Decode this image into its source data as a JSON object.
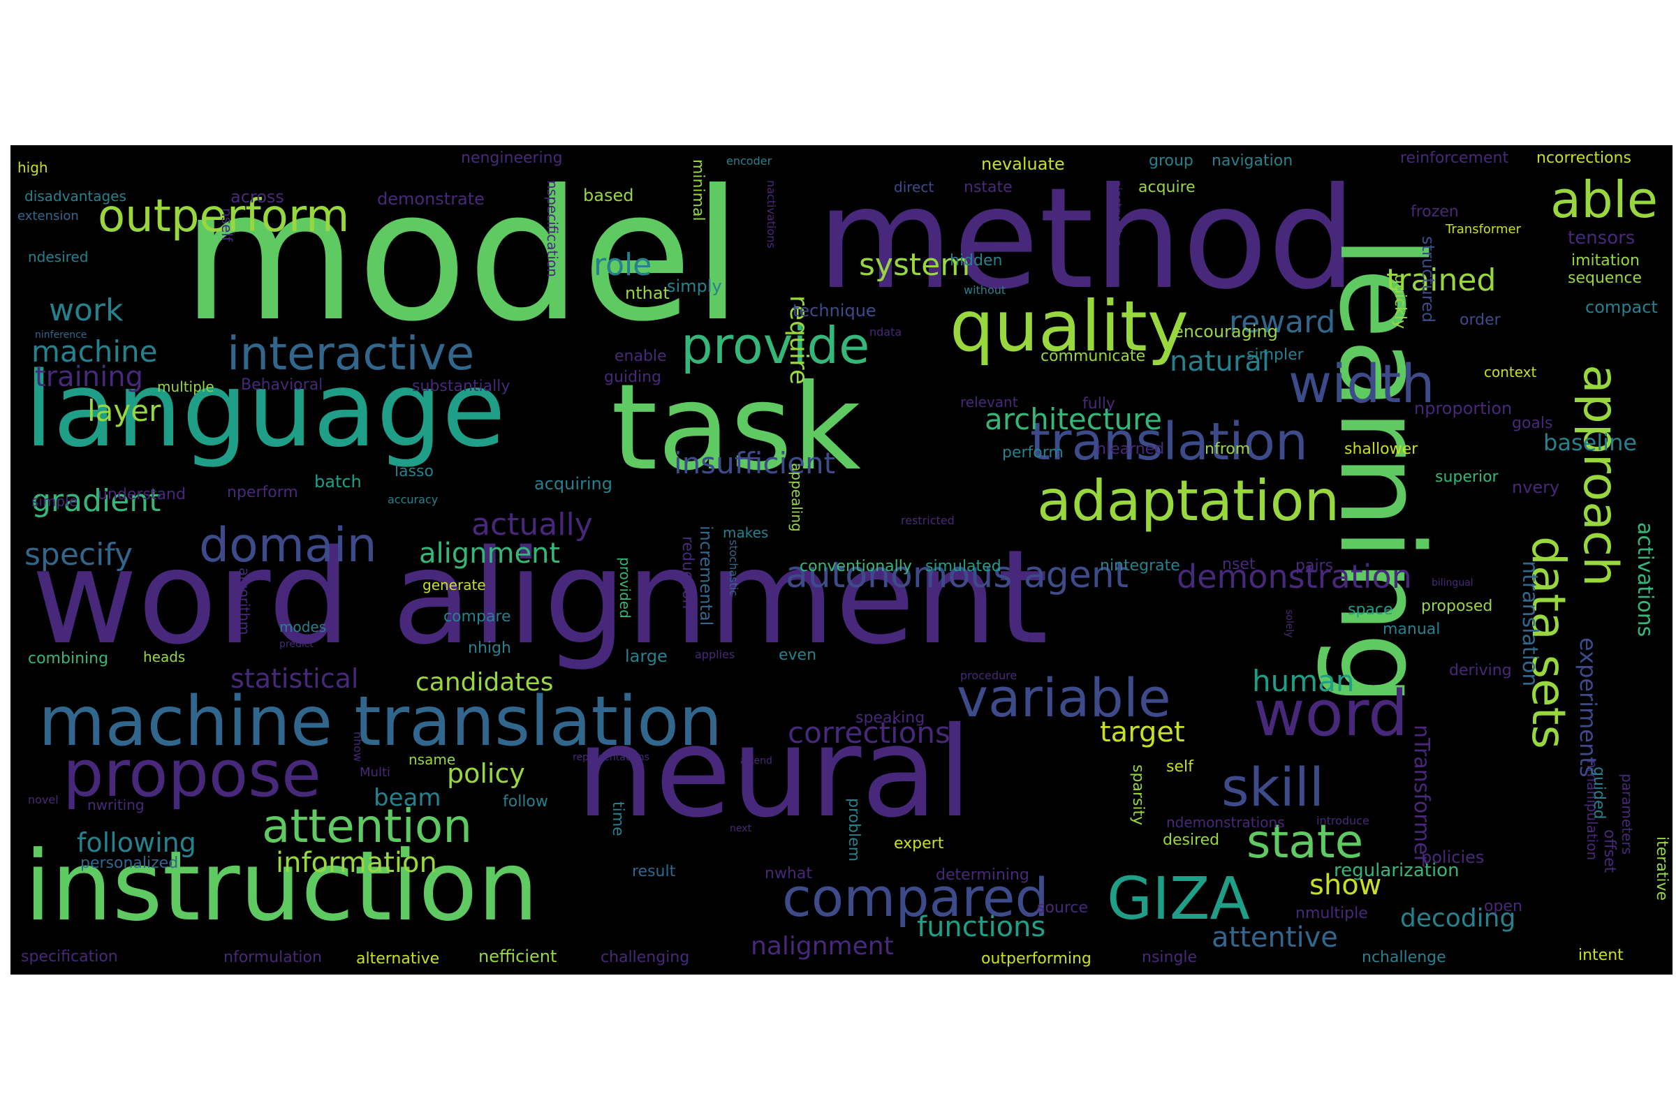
{
  "image": {
    "background": "#000000",
    "palette": {
      "dpurple": "#46145f",
      "purple": "#48287a",
      "indigo": "#3e4b8a",
      "blue": "#31678d",
      "teal": "#26818e",
      "cyan": "#1f9f88",
      "green": "#35b779",
      "lgreen": "#5fca61",
      "lime": "#98d83e",
      "yellow": "#c8e020"
    },
    "words": [
      {
        "text": "model",
        "color": "lgreen"
      },
      {
        "text": "method",
        "color": "purple"
      },
      {
        "text": "learning",
        "color": "lgreen"
      },
      {
        "text": "task",
        "color": "lgreen"
      },
      {
        "text": "language",
        "color": "cyan"
      },
      {
        "text": "word alignment",
        "color": "purple"
      },
      {
        "text": "neural",
        "color": "purple"
      },
      {
        "text": "instruction",
        "color": "lgreen"
      },
      {
        "text": "outperform",
        "color": "lime"
      },
      {
        "text": "machine translation",
        "color": "blue"
      },
      {
        "text": "interactive",
        "color": "blue"
      },
      {
        "text": "quality",
        "color": "lime"
      },
      {
        "text": "provide",
        "color": "green"
      },
      {
        "text": "able",
        "color": "lime"
      },
      {
        "text": "adaptation",
        "color": "lime"
      },
      {
        "text": "translation",
        "color": "indigo"
      },
      {
        "text": "propose",
        "color": "purple"
      },
      {
        "text": "attention",
        "color": "lgreen"
      },
      {
        "text": "compared",
        "color": "indigo"
      },
      {
        "text": "GIZA",
        "color": "cyan"
      },
      {
        "text": "word",
        "color": "purple"
      },
      {
        "text": "variable",
        "color": "indigo"
      },
      {
        "text": "domain",
        "color": "indigo"
      },
      {
        "text": "width",
        "color": "indigo"
      },
      {
        "text": "approach",
        "color": "lime"
      },
      {
        "text": "data sets",
        "color": "lime"
      },
      {
        "text": "skill",
        "color": "indigo"
      },
      {
        "text": "state",
        "color": "lgreen"
      },
      {
        "text": "autonomous agent",
        "color": "indigo"
      },
      {
        "text": "demonstration",
        "color": "purple"
      },
      {
        "text": "gradient",
        "color": "green"
      },
      {
        "text": "specify",
        "color": "blue"
      },
      {
        "text": "alignment",
        "color": "green"
      },
      {
        "text": "actually",
        "color": "purple"
      },
      {
        "text": "insufficient",
        "color": "indigo"
      },
      {
        "text": "architecture",
        "color": "green"
      },
      {
        "text": "natural",
        "color": "teal"
      },
      {
        "text": "reward",
        "color": "blue"
      },
      {
        "text": "system",
        "color": "lime"
      },
      {
        "text": "trained",
        "color": "lime"
      },
      {
        "text": "role",
        "color": "teal"
      },
      {
        "text": "work",
        "color": "teal"
      },
      {
        "text": "machine",
        "color": "teal"
      },
      {
        "text": "training",
        "color": "purple"
      },
      {
        "text": "layer",
        "color": "lime"
      },
      {
        "text": "require",
        "color": "lime"
      },
      {
        "text": "statistical",
        "color": "purple"
      },
      {
        "text": "candidates",
        "color": "lime"
      },
      {
        "text": "human",
        "color": "cyan"
      },
      {
        "text": "target",
        "color": "yellow"
      },
      {
        "text": "corrections",
        "color": "purple"
      },
      {
        "text": "policy",
        "color": "lime"
      },
      {
        "text": "following",
        "color": "teal"
      },
      {
        "text": "information",
        "color": "lime"
      },
      {
        "text": "functions",
        "color": "cyan"
      },
      {
        "text": "attentive",
        "color": "blue"
      },
      {
        "text": "decoding",
        "color": "teal"
      },
      {
        "text": "show",
        "color": "yellow"
      },
      {
        "text": "nalignment",
        "color": "purple"
      },
      {
        "text": "beam",
        "color": "teal"
      },
      {
        "text": "activations",
        "color": "green"
      },
      {
        "text": "experiments",
        "color": "indigo"
      },
      {
        "text": "ntranslation",
        "color": "blue"
      },
      {
        "text": "nTransformer",
        "color": "purple"
      },
      {
        "text": "baseline",
        "color": "teal"
      },
      {
        "text": "regularization",
        "color": "green"
      },
      {
        "text": "policies",
        "color": "purple"
      },
      {
        "text": "nevaluate",
        "color": "yellow"
      },
      {
        "text": "group",
        "color": "teal"
      },
      {
        "text": "navigation",
        "color": "teal"
      },
      {
        "text": "nengineering",
        "color": "purple"
      },
      {
        "text": "reinforcement",
        "color": "purple"
      },
      {
        "text": "ncorrections",
        "color": "yellow"
      },
      {
        "text": "high",
        "color": "yellow"
      },
      {
        "text": "disadvantages",
        "color": "teal"
      },
      {
        "text": "extension",
        "color": "blue"
      },
      {
        "text": "ndesired",
        "color": "teal"
      },
      {
        "text": "ninference",
        "color": "blue"
      },
      {
        "text": "across",
        "color": "purple"
      },
      {
        "text": "demonstrate",
        "color": "purple"
      },
      {
        "text": "based",
        "color": "lime"
      },
      {
        "text": "encoder",
        "color": "teal"
      },
      {
        "text": "direct",
        "color": "indigo"
      },
      {
        "text": "nstate",
        "color": "purple"
      },
      {
        "text": "acquire",
        "color": "lime"
      },
      {
        "text": "frozen",
        "color": "purple"
      },
      {
        "text": "Transformer",
        "color": "yellow"
      },
      {
        "text": "tensors",
        "color": "purple"
      },
      {
        "text": "imitation",
        "color": "lime"
      },
      {
        "text": "sequence",
        "color": "lime"
      },
      {
        "text": "compact",
        "color": "teal"
      },
      {
        "text": "order",
        "color": "indigo"
      },
      {
        "text": "hidden",
        "color": "teal"
      },
      {
        "text": "without",
        "color": "teal"
      },
      {
        "text": "nthat",
        "color": "lime"
      },
      {
        "text": "simply",
        "color": "teal"
      },
      {
        "text": "technique",
        "color": "indigo"
      },
      {
        "text": "ndata",
        "color": "purple"
      },
      {
        "text": "encouraging",
        "color": "lime"
      },
      {
        "text": "simpler",
        "color": "teal"
      },
      {
        "text": "context",
        "color": "yellow"
      },
      {
        "text": "communicate",
        "color": "lime"
      },
      {
        "text": "enable",
        "color": "purple"
      },
      {
        "text": "guiding",
        "color": "purple"
      },
      {
        "text": "multiple",
        "color": "lime"
      },
      {
        "text": "Behavioral",
        "color": "purple"
      },
      {
        "text": "substantially",
        "color": "purple"
      },
      {
        "text": "relevant",
        "color": "purple"
      },
      {
        "text": "fully",
        "color": "purple"
      },
      {
        "text": "nproportion",
        "color": "purple"
      },
      {
        "text": "goals",
        "color": "purple"
      },
      {
        "text": "perform",
        "color": "teal"
      },
      {
        "text": "nlearned",
        "color": "purple"
      },
      {
        "text": "nfrom",
        "color": "lime"
      },
      {
        "text": "shallower",
        "color": "yellow"
      },
      {
        "text": "superior",
        "color": "green"
      },
      {
        "text": "nvery",
        "color": "purple"
      },
      {
        "text": "batch",
        "color": "cyan"
      },
      {
        "text": "lasso",
        "color": "teal"
      },
      {
        "text": "acquiring",
        "color": "teal"
      },
      {
        "text": "simple",
        "color": "purple"
      },
      {
        "text": "understand",
        "color": "purple"
      },
      {
        "text": "nperform",
        "color": "purple"
      },
      {
        "text": "accuracy",
        "color": "teal"
      },
      {
        "text": "restricted",
        "color": "purple"
      },
      {
        "text": "makes",
        "color": "teal"
      },
      {
        "text": "conventionally",
        "color": "green"
      },
      {
        "text": "simulated",
        "color": "cyan"
      },
      {
        "text": "nintegrate",
        "color": "teal"
      },
      {
        "text": "nset",
        "color": "purple"
      },
      {
        "text": "pairs",
        "color": "purple"
      },
      {
        "text": "bilingual",
        "color": "purple"
      },
      {
        "text": "generate",
        "color": "yellow"
      },
      {
        "text": "compare",
        "color": "teal"
      },
      {
        "text": "space",
        "color": "cyan"
      },
      {
        "text": "proposed",
        "color": "lime"
      },
      {
        "text": "manual",
        "color": "teal"
      },
      {
        "text": "modes",
        "color": "teal"
      },
      {
        "text": "predict",
        "color": "purple"
      },
      {
        "text": "nhigh",
        "color": "teal"
      },
      {
        "text": "combining",
        "color": "green"
      },
      {
        "text": "heads",
        "color": "lime"
      },
      {
        "text": "large",
        "color": "teal"
      },
      {
        "text": "applies",
        "color": "purple"
      },
      {
        "text": "even",
        "color": "teal"
      },
      {
        "text": "deriving",
        "color": "purple"
      },
      {
        "text": "procedure",
        "color": "purple"
      },
      {
        "text": "speaking",
        "color": "purple"
      },
      {
        "text": "nsame",
        "color": "lime"
      },
      {
        "text": "Multi",
        "color": "purple"
      },
      {
        "text": "representations",
        "color": "purple"
      },
      {
        "text": "attend",
        "color": "purple"
      },
      {
        "text": "self",
        "color": "yellow"
      },
      {
        "text": "novel",
        "color": "purple"
      },
      {
        "text": "nwriting",
        "color": "purple"
      },
      {
        "text": "follow",
        "color": "teal"
      },
      {
        "text": "next",
        "color": "purple"
      },
      {
        "text": "ndemonstrations",
        "color": "purple"
      },
      {
        "text": "introduce",
        "color": "purple"
      },
      {
        "text": "desired",
        "color": "lime"
      },
      {
        "text": "personalized",
        "color": "blue"
      },
      {
        "text": "expert",
        "color": "yellow"
      },
      {
        "text": "result",
        "color": "blue"
      },
      {
        "text": "nwhat",
        "color": "purple"
      },
      {
        "text": "determining",
        "color": "purple"
      },
      {
        "text": "source",
        "color": "purple"
      },
      {
        "text": "open",
        "color": "purple"
      },
      {
        "text": "nmultiple",
        "color": "purple"
      },
      {
        "text": "specification",
        "color": "purple"
      },
      {
        "text": "nformulation",
        "color": "purple"
      },
      {
        "text": "alternative",
        "color": "yellow"
      },
      {
        "text": "nefficient",
        "color": "lime"
      },
      {
        "text": "challenging",
        "color": "purple"
      },
      {
        "text": "outperforming",
        "color": "yellow"
      },
      {
        "text": "nsingle",
        "color": "purple"
      },
      {
        "text": "nchallenge",
        "color": "teal"
      },
      {
        "text": "intent",
        "color": "yellow"
      },
      {
        "text": "nself",
        "color": "purple"
      },
      {
        "text": "nspecification",
        "color": "purple"
      },
      {
        "text": "minimal",
        "color": "lime"
      },
      {
        "text": "nactivations",
        "color": "purple"
      },
      {
        "text": "ninstruction",
        "color": "purple"
      },
      {
        "text": "quickly",
        "color": "lime"
      },
      {
        "text": "structured",
        "color": "indigo"
      },
      {
        "text": "appealing",
        "color": "lime"
      },
      {
        "text": "incremental",
        "color": "blue"
      },
      {
        "text": "reduction",
        "color": "purple"
      },
      {
        "text": "stochastic",
        "color": "blue"
      },
      {
        "text": "provided",
        "color": "green"
      },
      {
        "text": "algorithm",
        "color": "purple"
      },
      {
        "text": "nhow",
        "color": "purple"
      },
      {
        "text": "time",
        "color": "teal"
      },
      {
        "text": "problem",
        "color": "teal"
      },
      {
        "text": "sparsity",
        "color": "lime"
      },
      {
        "text": "nmanipulation",
        "color": "purple"
      },
      {
        "text": "guided",
        "color": "teal"
      },
      {
        "text": "offset",
        "color": "purple"
      },
      {
        "text": "parameters",
        "color": "purple"
      },
      {
        "text": "iterative",
        "color": "lime"
      },
      {
        "text": "solely",
        "color": "purple"
      }
    ]
  }
}
